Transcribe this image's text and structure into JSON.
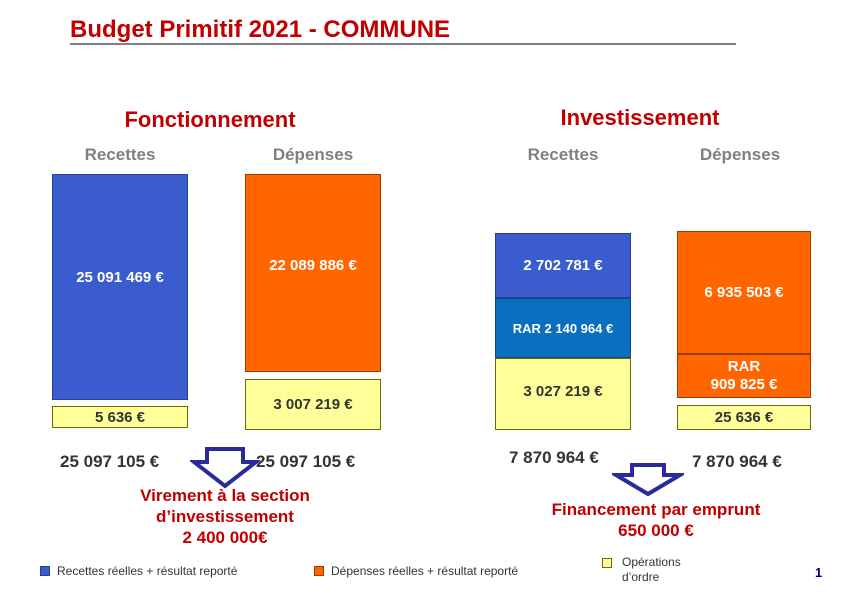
{
  "title": "Budget Primitif 2021 - COMMUNE",
  "colors": {
    "recettes": "#3b5cce",
    "depenses": "#ff6600",
    "rar_recettes": "#0a6fbf",
    "ordre": "#ffff99",
    "heading": "#c00000",
    "arrow": "#2a2a9a"
  },
  "fonctionnement": {
    "heading": "Fonctionnement",
    "recettes_label": "Recettes",
    "depenses_label": "Dépenses",
    "recettes_reelles": "25 091 469 €",
    "recettes_ordre": "5 636 €",
    "depenses_reelles": "22 089 886 €",
    "depenses_ordre": "3 007 219 €",
    "total_recettes": "25 097 105 €",
    "total_depenses": "25 097 105 €",
    "virement_line1": "Virement à la section",
    "virement_line2": "d’investissement",
    "virement_amount": "2 400 000€"
  },
  "investissement": {
    "heading": "Investissement",
    "recettes_label": "Recettes",
    "depenses_label": "Dépenses",
    "recettes_reelles": "2 702 781 €",
    "recettes_rar": "RAR 2 140 964 €",
    "recettes_ordre": "3 027 219 €",
    "depenses_reelles": "6 935 503 €",
    "depenses_rar_label": "RAR",
    "depenses_rar_amount": "909 825 €",
    "depenses_ordre": "25 636 €",
    "total_recettes": "7 870 964 €",
    "total_depenses": "7 870 964 €",
    "financement_line1": "Financement par emprunt",
    "financement_amount": "650 000 €"
  },
  "legend": {
    "recettes": "Recettes réelles + résultat reporté",
    "depenses": "Dépenses réelles + résultat reporté",
    "ordre_line1": "Opérations",
    "ordre_line2": "d’ordre"
  },
  "page_number": "1"
}
